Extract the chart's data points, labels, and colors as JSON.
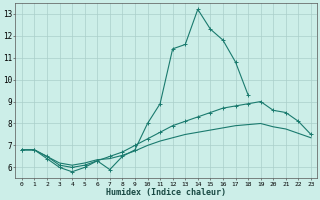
{
  "xlabel": "Humidex (Indice chaleur)",
  "x": [
    0,
    1,
    2,
    3,
    4,
    5,
    6,
    7,
    8,
    9,
    10,
    11,
    12,
    13,
    14,
    15,
    16,
    17,
    18,
    19,
    20,
    21,
    22,
    23
  ],
  "line1": [
    6.8,
    6.8,
    6.4,
    6.0,
    5.8,
    6.0,
    6.3,
    5.9,
    6.5,
    6.8,
    8.0,
    8.9,
    11.4,
    11.6,
    13.2,
    12.3,
    11.8,
    10.8,
    9.3,
    null,
    null,
    null,
    null,
    null
  ],
  "line2": [
    6.8,
    6.8,
    6.5,
    6.1,
    6.0,
    6.1,
    6.3,
    6.5,
    6.7,
    7.0,
    7.3,
    7.6,
    7.9,
    8.1,
    8.3,
    8.5,
    8.7,
    8.8,
    8.9,
    9.0,
    8.6,
    8.5,
    8.1,
    7.5
  ],
  "line3": [
    6.8,
    6.8,
    6.5,
    6.2,
    6.1,
    6.2,
    6.35,
    6.4,
    6.55,
    6.75,
    7.0,
    7.2,
    7.35,
    7.5,
    7.6,
    7.7,
    7.8,
    7.9,
    7.95,
    8.0,
    7.85,
    7.75,
    7.55,
    7.35
  ],
  "line_color": "#1a7a6e",
  "bg_color": "#cceee8",
  "grid_color": "#aacfca",
  "ylim": [
    5.5,
    13.5
  ],
  "xlim": [
    -0.5,
    23.5
  ],
  "yticks": [
    6,
    7,
    8,
    9,
    10,
    11,
    12,
    13
  ],
  "xticks": [
    0,
    1,
    2,
    3,
    4,
    5,
    6,
    7,
    8,
    9,
    10,
    11,
    12,
    13,
    14,
    15,
    16,
    17,
    18,
    19,
    20,
    21,
    22,
    23
  ]
}
